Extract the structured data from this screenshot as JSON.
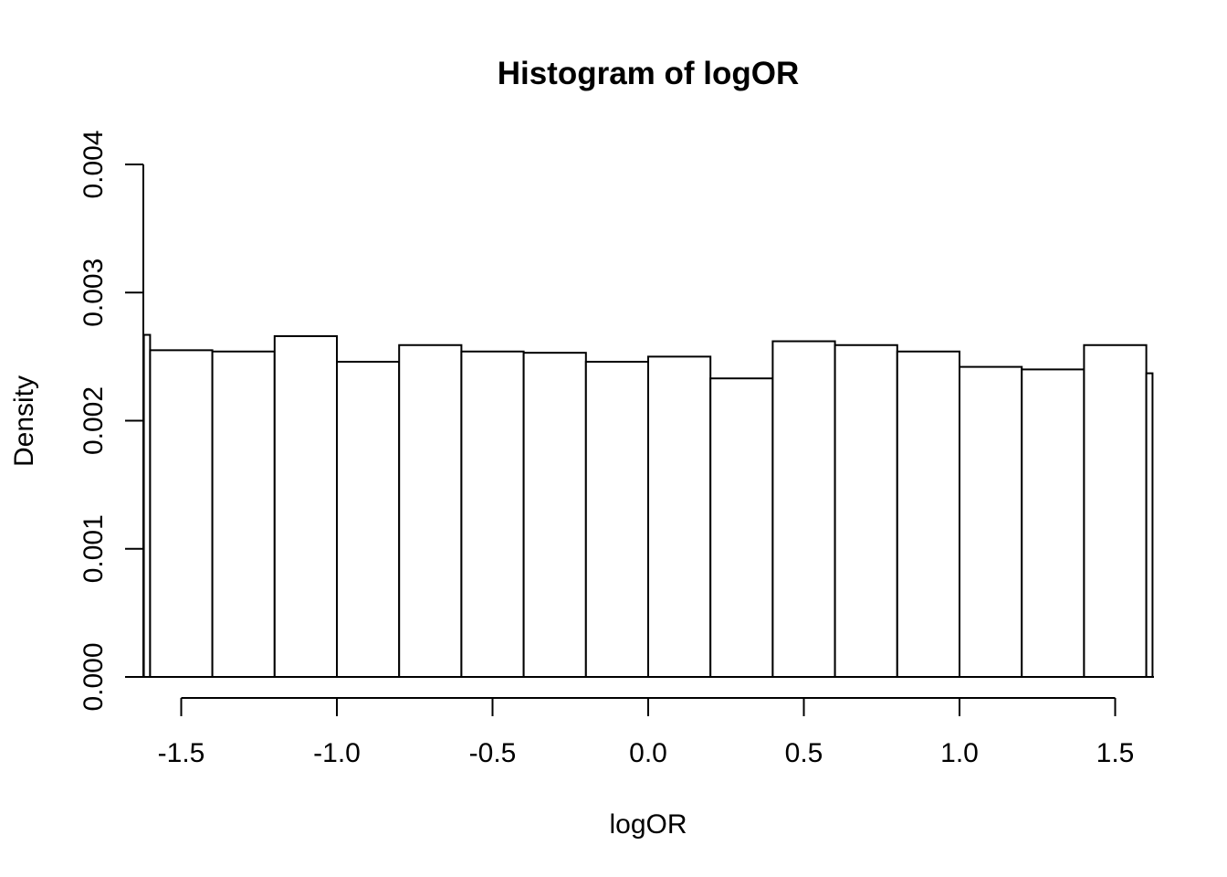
{
  "chart_data": {
    "type": "bar",
    "title": "Histogram of logOR",
    "xlabel": "logOR",
    "ylabel": "Density",
    "x_ticks": [
      "-1.5",
      "-1.0",
      "-0.5",
      "0.0",
      "0.5",
      "1.0",
      "1.5"
    ],
    "x_tick_values": [
      -1.5,
      -1.0,
      -0.5,
      0.0,
      0.5,
      1.0,
      1.5
    ],
    "y_ticks": [
      "0.000",
      "0.001",
      "0.002",
      "0.003",
      "0.004"
    ],
    "y_tick_values": [
      0.0,
      0.001,
      0.002,
      0.003,
      0.004
    ],
    "ylim": [
      0,
      0.004
    ],
    "bins": [
      {
        "x0": -1.62,
        "x1": -1.6,
        "value": 0.00267
      },
      {
        "x0": -1.6,
        "x1": -1.4,
        "value": 0.00255
      },
      {
        "x0": -1.4,
        "x1": -1.2,
        "value": 0.00254
      },
      {
        "x0": -1.2,
        "x1": -1.0,
        "value": 0.00266
      },
      {
        "x0": -1.0,
        "x1": -0.8,
        "value": 0.00246
      },
      {
        "x0": -0.8,
        "x1": -0.6,
        "value": 0.00259
      },
      {
        "x0": -0.6,
        "x1": -0.4,
        "value": 0.00254
      },
      {
        "x0": -0.4,
        "x1": -0.2,
        "value": 0.00253
      },
      {
        "x0": -0.2,
        "x1": 0.0,
        "value": 0.00246
      },
      {
        "x0": 0.0,
        "x1": 0.2,
        "value": 0.0025
      },
      {
        "x0": 0.2,
        "x1": 0.4,
        "value": 0.00233
      },
      {
        "x0": 0.4,
        "x1": 0.6,
        "value": 0.00262
      },
      {
        "x0": 0.6,
        "x1": 0.8,
        "value": 0.00259
      },
      {
        "x0": 0.8,
        "x1": 1.0,
        "value": 0.00254
      },
      {
        "x0": 1.0,
        "x1": 1.2,
        "value": 0.00242
      },
      {
        "x0": 1.2,
        "x1": 1.4,
        "value": 0.0024
      },
      {
        "x0": 1.4,
        "x1": 1.6,
        "value": 0.00259
      },
      {
        "x0": 1.6,
        "x1": 1.62,
        "value": 0.00237
      }
    ]
  }
}
